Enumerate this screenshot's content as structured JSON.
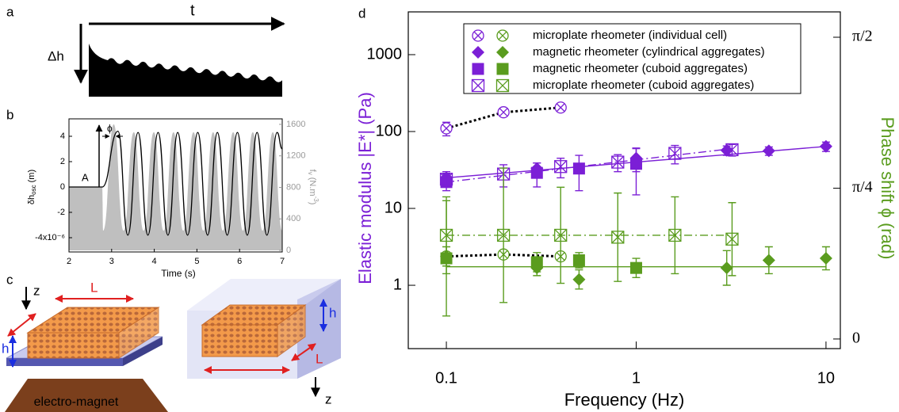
{
  "panel_labels": [
    "a",
    "b",
    "c",
    "d"
  ],
  "diagram_a": {
    "time_label": "t",
    "height_label": "Δh"
  },
  "diagram_c": {
    "left": {
      "z": "z",
      "L": "L",
      "h": "h",
      "magnet": "electro-magnet"
    },
    "right": {
      "h": "h",
      "L": "L",
      "z": "z"
    }
  },
  "chart_data": [
    {
      "type": "line",
      "x_label": "Time (s)",
      "y_label": [
        "δh",
        "osc",
        " (m)"
      ],
      "y2_label": [
        "f",
        "v",
        " (N.m",
        "-3",
        ")"
      ],
      "annotations": [
        "A",
        "ϕ"
      ],
      "xlim": [
        2,
        7
      ],
      "ylim": [
        -5.125,
        5.375
      ],
      "y2lim": [
        -20,
        1670
      ],
      "xticks": [
        2,
        3,
        4,
        5,
        6,
        7
      ],
      "yticks": [
        {
          "value": -4,
          "label": "-4x10⁻⁶"
        },
        -2,
        0,
        2,
        4
      ],
      "y2ticks": [
        0,
        400,
        800,
        1200,
        1600
      ],
      "series": [
        {
          "color": "#bfbfbf",
          "axis": "y2",
          "fill": true,
          "x": [
            2,
            2.78,
            2.8,
            3.05,
            3.28,
            3.52,
            3.75,
            3.99,
            4.22,
            4.45,
            4.68,
            4.92,
            5.15,
            5.38,
            5.61,
            5.85,
            6.08,
            6.31,
            6.54,
            6.78,
            7.0
          ],
          "values": [
            800,
            800,
            250,
            1600,
            250,
            1500,
            250,
            1500,
            250,
            1500,
            250,
            1500,
            250,
            1500,
            250,
            1500,
            250,
            1500,
            250,
            1500,
            250
          ]
        },
        {
          "color": "#000000",
          "x": [
            2,
            2.78,
            3.15,
            3.38,
            3.62,
            3.85,
            4.09,
            4.32,
            4.55,
            4.78,
            5.02,
            5.25,
            5.48,
            5.71,
            5.95,
            6.18,
            6.41,
            6.64,
            6.88,
            7.0
          ],
          "values": [
            0,
            0,
            4.4,
            -3.8,
            4.3,
            -3.8,
            4.3,
            -3.8,
            4.3,
            -3.8,
            4.3,
            -3.8,
            4.3,
            -3.8,
            4.3,
            -3.8,
            4.3,
            -3.8,
            4.3,
            3.0
          ]
        }
      ]
    },
    {
      "type": "scatter",
      "x_label": "Frequency (Hz)",
      "y_label": "Elastic modulus |E*| (Pa)",
      "y2_label": "Phase shift ϕ (rad)",
      "xscale": "log",
      "yscale": "log",
      "xlim": [
        0.063,
        11.9
      ],
      "ylim": [
        0.15,
        3600
      ],
      "y2lim": [
        -0.05,
        1.703
      ],
      "xticks": [
        0.1,
        1,
        10
      ],
      "yticks": [
        1,
        10,
        100,
        1000
      ],
      "y2ticks": [
        0,
        {
          "value": 0.785,
          "label": "π/4"
        },
        {
          "value": 1.571,
          "label": "π/2"
        }
      ],
      "color": "#7b1fd6",
      "y2color": "#5a9c1e",
      "legend": "top",
      "series": [
        {
          "name": "microplate rheometer (individual cell)",
          "marker": "circle-x",
          "connector": "dotted",
          "x": [
            0.1,
            0.2,
            0.4
          ],
          "values": [
            110,
            178,
            205
          ],
          "errors": [
            22,
            20,
            15
          ],
          "phase_x": [
            0.1,
            0.2,
            0.4
          ],
          "phase": [
            0.43,
            0.44,
            0.43
          ]
        },
        {
          "name": "magnetic rheometer (cylindrical aggregates)",
          "marker": "diamond",
          "x": [
            0.1,
            0.3,
            1,
            3,
            5,
            10
          ],
          "values": [
            25,
            33,
            45,
            57,
            56,
            64
          ],
          "errors": [
            5,
            6,
            15,
            8,
            7,
            9
          ],
          "phase_x": [
            0.1,
            0.3,
            0.5,
            3,
            5,
            10
          ],
          "phase": [
            0.43,
            0.37,
            0.31,
            0.37,
            0.41,
            0.42
          ],
          "phase_errors": [
            0.05,
            0.04,
            0.05,
            0.09,
            0.07,
            0.06
          ]
        },
        {
          "name": "magnetic rheometer (cuboid aggregates)",
          "marker": "square",
          "x": [
            0.1,
            0.3,
            0.5,
            1
          ],
          "values": [
            22,
            29,
            33,
            38
          ],
          "errors": [
            5,
            10,
            16,
            23
          ],
          "phase_x": [
            0.1,
            0.3,
            0.5,
            1
          ],
          "phase": [
            0.42,
            0.4,
            0.41,
            0.37
          ],
          "phase_errors": [
            0.3,
            0.05,
            0.04,
            0.05
          ]
        },
        {
          "name": "microplate rheometer (cuboid aggregates)",
          "marker": "square-x",
          "x": [
            0.1,
            0.2,
            0.4,
            0.8,
            1.6,
            3.2
          ],
          "values": [
            24,
            28,
            35,
            40,
            52,
            58
          ],
          "errors": [
            4,
            9,
            10,
            10,
            14,
            10
          ],
          "phase_x": [
            0.1,
            0.2,
            0.4,
            0.8,
            1.6,
            3.2
          ],
          "phase": [
            0.54,
            0.54,
            0.54,
            0.53,
            0.54,
            0.52
          ],
          "phase_errors": [
            0.2,
            0.35,
            0.25,
            0.23,
            0.2,
            0.19
          ]
        }
      ],
      "fits": [
        {
          "axis": "y",
          "style": "solid",
          "x": [
            0.1,
            10
          ],
          "values": [
            25,
            64
          ]
        },
        {
          "axis": "y",
          "style": "dashdot",
          "x": [
            0.1,
            3.2
          ],
          "values": [
            22,
            60
          ]
        },
        {
          "axis": "y2",
          "style": "solid",
          "x": [
            0.1,
            10
          ],
          "values": [
            0.376,
            0.376
          ]
        },
        {
          "axis": "y2",
          "style": "dashdot",
          "x": [
            0.1,
            3.2
          ],
          "values": [
            0.54,
            0.54
          ]
        }
      ]
    }
  ]
}
